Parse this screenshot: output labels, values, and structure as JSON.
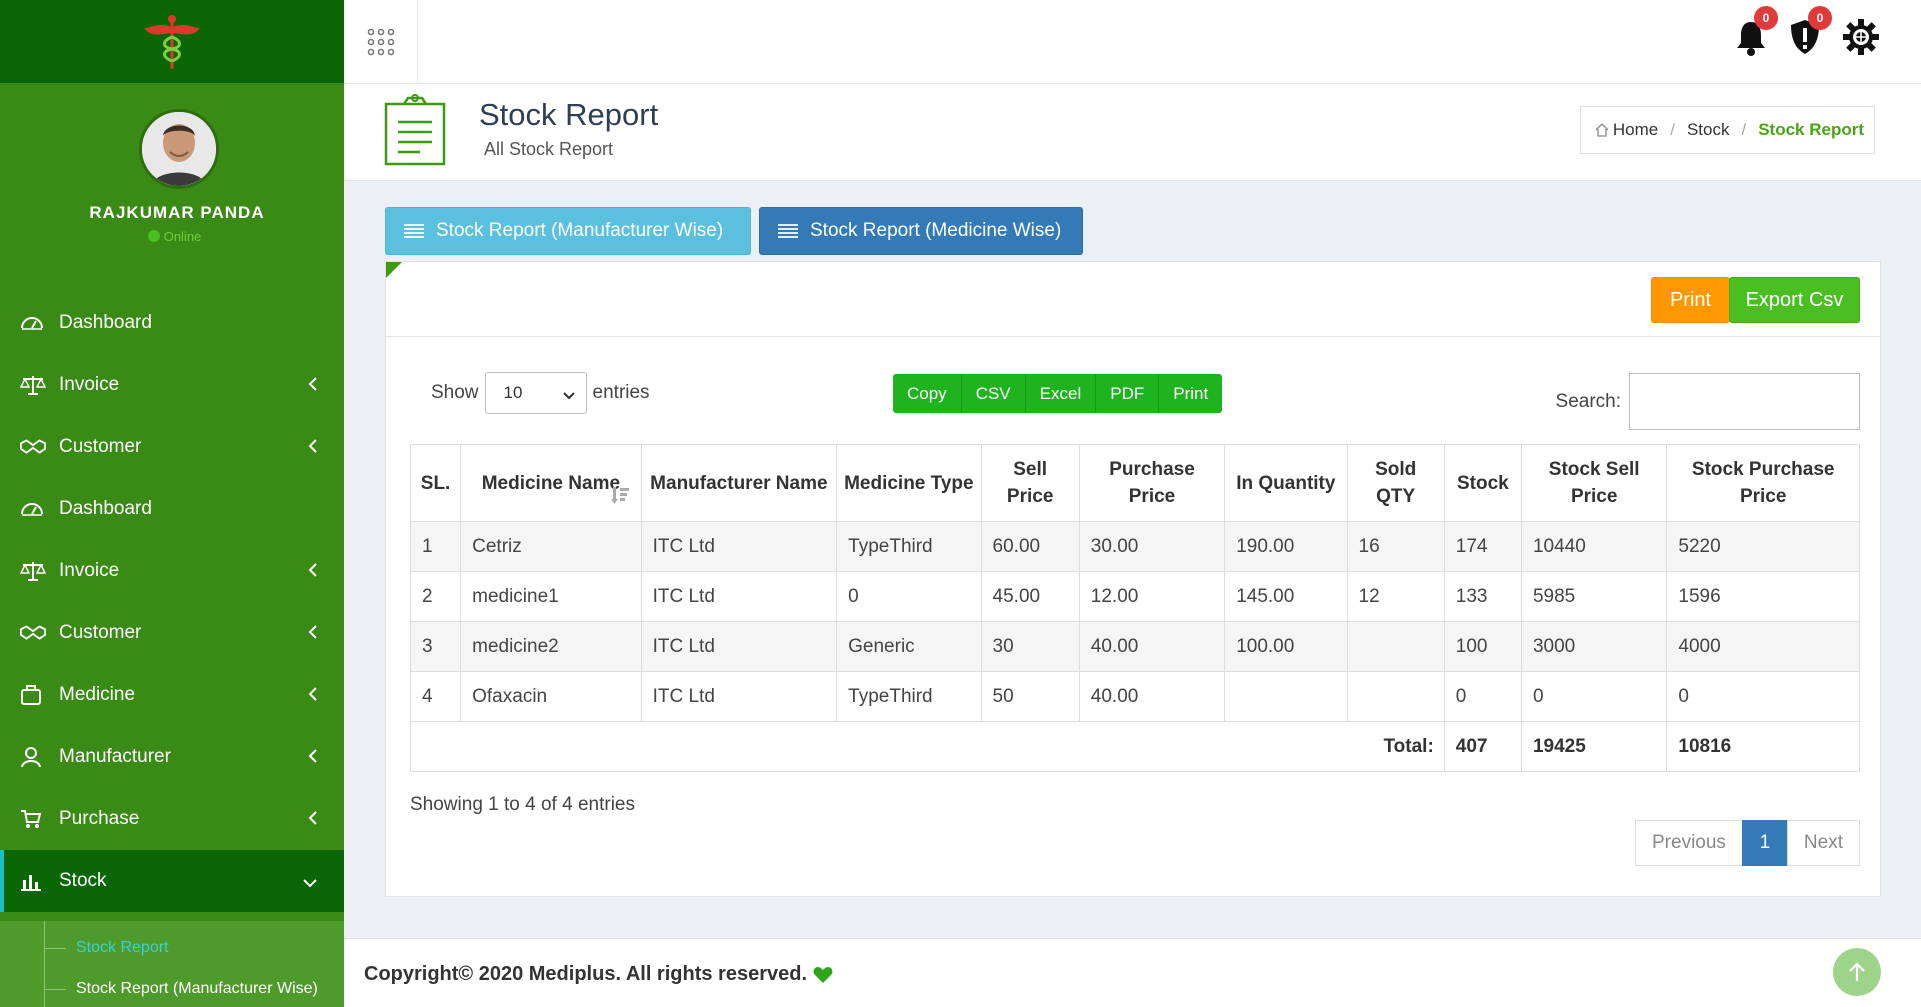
{
  "user": {
    "name": "RAJKUMAR PANDA",
    "status": "Online"
  },
  "sidebar": {
    "items": [
      {
        "label": "Dashboard",
        "icon": "dashboard-icon"
      },
      {
        "label": "Invoice",
        "icon": "scale-icon"
      },
      {
        "label": "Customer",
        "icon": "handshake-icon"
      },
      {
        "label": "Dashboard",
        "icon": "dashboard-icon"
      },
      {
        "label": "Invoice",
        "icon": "scale-icon"
      },
      {
        "label": "Customer",
        "icon": "handshake-icon"
      },
      {
        "label": "Medicine",
        "icon": "briefcase-icon"
      },
      {
        "label": "Manufacturer",
        "icon": "user-icon"
      },
      {
        "label": "Purchase",
        "icon": "cart-icon"
      },
      {
        "label": "Stock",
        "icon": "bar-chart-icon"
      }
    ],
    "submenu": [
      "Stock Report",
      "Stock Report (Manufacturer Wise)"
    ]
  },
  "topbar": {
    "notifications_count": "0",
    "alerts_count": "0"
  },
  "header": {
    "title": "Stock Report",
    "subtitle": "All Stock Report"
  },
  "breadcrumb": {
    "home": "Home",
    "section": "Stock",
    "current": "Stock Report"
  },
  "tabs": {
    "manufacturer": "Stock Report (Manufacturer Wise)",
    "medicine": "Stock Report (Medicine Wise)"
  },
  "actions": {
    "print": "Print",
    "export": "Export Csv"
  },
  "datatable": {
    "show_label": "Show",
    "entries_value": "10",
    "entries_label": "entries",
    "export_buttons": [
      "Copy",
      "CSV",
      "Excel",
      "PDF",
      "Print"
    ],
    "search_label": "Search:",
    "search_value": "",
    "columns": [
      "SL.",
      "Medicine Name",
      "Manufacturer Name",
      "Medicine Type",
      "Sell Price",
      "Purchase Price",
      "In Quantity",
      "Sold QTY",
      "Stock",
      "Stock Sell Price",
      "Stock Purchase Price"
    ],
    "rows": [
      [
        "1",
        "Cetriz",
        "ITC Ltd",
        "TypeThird",
        "60.00",
        "30.00",
        "190.00",
        "16",
        "174",
        "10440",
        "5220"
      ],
      [
        "2",
        "medicine1",
        "ITC Ltd",
        "0",
        "45.00",
        "12.00",
        "145.00",
        "12",
        "133",
        "5985",
        "1596"
      ],
      [
        "3",
        "medicine2",
        "ITC Ltd",
        "Generic",
        "30",
        "40.00",
        "100.00",
        "",
        "100",
        "3000",
        "4000"
      ],
      [
        "4",
        "Ofaxacin",
        "ITC Ltd",
        "TypeThird",
        "50",
        "40.00",
        "",
        "",
        "0",
        "0",
        "0"
      ]
    ],
    "total": {
      "label": "Total:",
      "stock": "407",
      "stock_sell": "19425",
      "stock_purchase": "10816"
    },
    "info": "Showing 1 to 4 of 4 entries",
    "pagination": {
      "previous": "Previous",
      "current": "1",
      "next": "Next"
    }
  },
  "footer": {
    "text": "Copyright© 2020 Mediplus. All rights reserved."
  }
}
